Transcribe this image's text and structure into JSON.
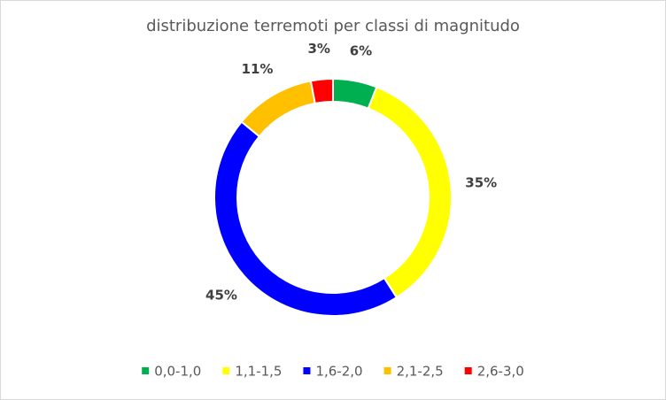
{
  "chart_data": {
    "type": "donut",
    "title": "distribuzione terremoti per classi di magnitudo",
    "categories": [
      "0,0-1,0",
      "1,1-1,5",
      "1,6-2,0",
      "2,1-2,5",
      "2,6-3,0"
    ],
    "values": [
      6,
      35,
      45,
      11,
      3
    ],
    "value_labels": [
      "6%",
      "35%",
      "45%",
      "11%",
      "3%"
    ],
    "colors": [
      "#00b050",
      "#ffff00",
      "#0000ff",
      "#ffc000",
      "#ff0000"
    ],
    "legend": "bottom"
  }
}
